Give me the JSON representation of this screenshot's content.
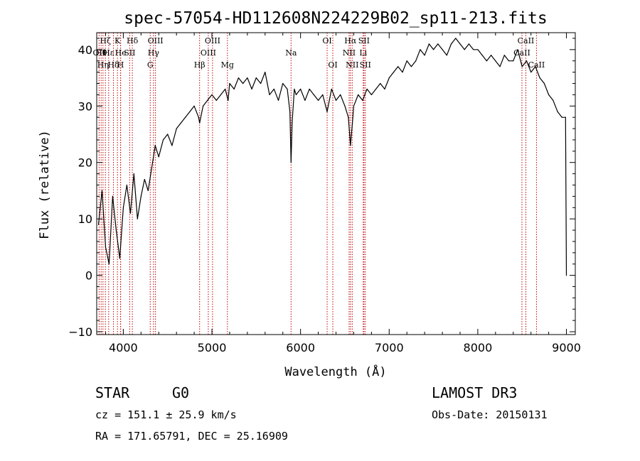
{
  "chart_data": {
    "type": "line",
    "title": "spec-57054-HD112608N224229B02_sp11-213.fits",
    "xlabel": "Wavelength (Å)",
    "ylabel": "Flux (relative)",
    "xlim": [
      3700,
      9100
    ],
    "ylim": [
      -10.5,
      43
    ],
    "xticks": [
      4000,
      5000,
      6000,
      7000,
      8000,
      9000
    ],
    "yticks": [
      -10,
      0,
      10,
      20,
      30,
      40
    ],
    "grid": false,
    "series": [
      {
        "x": [
          3720,
          3760,
          3800,
          3840,
          3880,
          3920,
          3960,
          4000,
          4040,
          4080,
          4120,
          4160,
          4200,
          4240,
          4280,
          4320,
          4360,
          4400,
          4450,
          4500,
          4550,
          4600,
          4650,
          4700,
          4750,
          4800,
          4850,
          4861,
          4900,
          4950,
          5000,
          5050,
          5100,
          5150,
          5183,
          5200,
          5250,
          5300,
          5350,
          5400,
          5450,
          5500,
          5550,
          5600,
          5650,
          5700,
          5750,
          5800,
          5850,
          5880,
          5893,
          5905,
          5930,
          5950,
          6000,
          6050,
          6100,
          6150,
          6200,
          6250,
          6300,
          6350,
          6400,
          6450,
          6500,
          6540,
          6563,
          6585,
          6600,
          6650,
          6700,
          6750,
          6800,
          6850,
          6900,
          6950,
          7000,
          7050,
          7100,
          7150,
          7200,
          7250,
          7300,
          7350,
          7400,
          7450,
          7500,
          7550,
          7600,
          7650,
          7700,
          7750,
          7800,
          7850,
          7900,
          7950,
          8000,
          8050,
          8100,
          8150,
          8200,
          8250,
          8300,
          8350,
          8400,
          8450,
          8500,
          8550,
          8600,
          8650,
          8700,
          8750,
          8800,
          8850,
          8900,
          8950,
          8990,
          9000
        ],
        "y": [
          9,
          15,
          5,
          2,
          14,
          8,
          3,
          12,
          16,
          11,
          18,
          10,
          14,
          17,
          15,
          19,
          23,
          21,
          24,
          25,
          23,
          26,
          27,
          28,
          29,
          30,
          28,
          27,
          30,
          31,
          32,
          31,
          32,
          33,
          31,
          34,
          33,
          35,
          34,
          35,
          33,
          35,
          34,
          36,
          32,
          33,
          31,
          34,
          33,
          29,
          20,
          27,
          33,
          32,
          33,
          31,
          33,
          32,
          31,
          32,
          29,
          33,
          31,
          32,
          30,
          28,
          23,
          27,
          30,
          32,
          31,
          33,
          32,
          33,
          34,
          33,
          35,
          36,
          37,
          36,
          38,
          37,
          38,
          40,
          39,
          41,
          40,
          41,
          40,
          39,
          41,
          42,
          41,
          40,
          41,
          40,
          40,
          39,
          38,
          39,
          38,
          37,
          39,
          38,
          38,
          40,
          37,
          38,
          36,
          37,
          35,
          34,
          32,
          31,
          29,
          28,
          28,
          0
        ]
      }
    ],
    "lines": [
      {
        "w": 3727,
        "label": "OII",
        "row": 1
      },
      {
        "w": 3750,
        "label": "Hθ",
        "row": 1
      },
      {
        "w": 3771,
        "label": "Hη",
        "row": 2
      },
      {
        "w": 3798,
        "label": "Hζ",
        "row": 0
      },
      {
        "w": 3835,
        "label": "Hε",
        "row": 1
      },
      {
        "w": 3889,
        "label": "Hδ",
        "row": 2
      },
      {
        "w": 3934,
        "label": "K",
        "row": 0
      },
      {
        "w": 3969,
        "label": "H",
        "row": 2
      },
      {
        "w": 3970,
        "label": "He",
        "row": 1
      },
      {
        "w": 4072,
        "label": "SII",
        "row": 1
      },
      {
        "w": 4102,
        "label": "Hδ",
        "row": 0
      },
      {
        "w": 4304,
        "label": "G",
        "row": 2
      },
      {
        "w": 4341,
        "label": "Hγ",
        "row": 1
      },
      {
        "w": 4363,
        "label": "OIII",
        "row": 0
      },
      {
        "w": 4861,
        "label": "Hβ",
        "row": 2
      },
      {
        "w": 4959,
        "label": "OIII",
        "row": 1
      },
      {
        "w": 5007,
        "label": "OIII",
        "row": 0
      },
      {
        "w": 5175,
        "label": "Mg",
        "row": 2
      },
      {
        "w": 5893,
        "label": "Na",
        "row": 1
      },
      {
        "w": 6300,
        "label": "OI",
        "row": 0
      },
      {
        "w": 6364,
        "label": "OI",
        "row": 2
      },
      {
        "w": 6548,
        "label": "NII",
        "row": 1
      },
      {
        "w": 6563,
        "label": "Hα",
        "row": 0
      },
      {
        "w": 6583,
        "label": "NII",
        "row": 2
      },
      {
        "w": 6707,
        "label": "Li",
        "row": 1
      },
      {
        "w": 6716,
        "label": "SII",
        "row": 0
      },
      {
        "w": 6731,
        "label": "SII",
        "row": 2
      },
      {
        "w": 8498,
        "label": "CaII",
        "row": 1
      },
      {
        "w": 8542,
        "label": "CaII",
        "row": 0
      },
      {
        "w": 8662,
        "label": "CaII",
        "row": 2
      }
    ]
  },
  "info": {
    "object_class": "STAR",
    "subclass": "G0",
    "survey": "LAMOST DR3",
    "redshift": "cz = 151.1 ± 25.9 km/s",
    "obs_date": "Obs-Date: 20150131",
    "coordinates": "RA = 171.65791, DEC =  25.16909"
  },
  "colors": {
    "spectrum": "#000000",
    "line_markers": "#c00000",
    "background": "#ffffff"
  }
}
